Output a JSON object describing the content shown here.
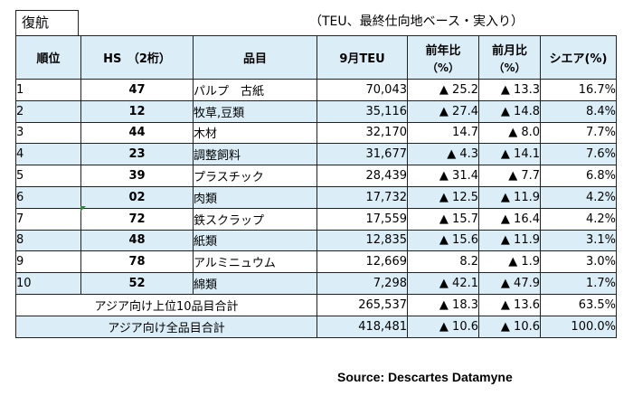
{
  "tag_label": "復航",
  "unit_note": "（TEU、最終仕向地ベース・実入り）",
  "headers": {
    "rank": "順位",
    "hs": "HS　（2桁）",
    "item": "品目",
    "teu": "9月TEU",
    "yoy_top": "前年比",
    "yoy_sub": "（%）",
    "mom_top": "前月比",
    "mom_sub": "（%）",
    "share": "シエア(%)"
  },
  "rows": [
    {
      "rank": "1",
      "hs": "47",
      "item": "パルプ　古紙",
      "teu": "70,043",
      "yoy": "▲ 25.2",
      "mom": "▲ 13.3",
      "share": "16.7%"
    },
    {
      "rank": "2",
      "hs": "12",
      "item": "牧草,豆類",
      "teu": "35,116",
      "yoy": "▲ 27.4",
      "mom": "▲ 14.8",
      "share": "8.4%"
    },
    {
      "rank": "3",
      "hs": "44",
      "item": "木材",
      "teu": "32,170",
      "yoy": "14.7",
      "mom": "▲ 8.0",
      "share": "7.7%"
    },
    {
      "rank": "4",
      "hs": "23",
      "item": "調整飼料",
      "teu": "31,677",
      "yoy": "▲ 4.3",
      "mom": "▲ 14.1",
      "share": "7.6%"
    },
    {
      "rank": "5",
      "hs": "39",
      "item": "プラスチック",
      "teu": "28,439",
      "yoy": "▲ 31.4",
      "mom": "▲ 7.7",
      "share": "6.8%"
    },
    {
      "rank": "6",
      "hs": "02",
      "item": "肉類",
      "teu": "17,732",
      "yoy": "▲ 12.5",
      "mom": "▲ 11.9",
      "share": "4.2%"
    },
    {
      "rank": "7",
      "hs": "72",
      "item": "鉄スクラップ",
      "teu": "17,559",
      "yoy": "▲ 15.7",
      "mom": "▲ 16.4",
      "share": "4.2%"
    },
    {
      "rank": "8",
      "hs": "48",
      "item": "紙類",
      "teu": "12,835",
      "yoy": "▲ 15.6",
      "mom": "▲ 11.9",
      "share": "3.1%"
    },
    {
      "rank": "9",
      "hs": "78",
      "item": "アルミニュウム",
      "teu": "12,669",
      "yoy": "8.2",
      "mom": "▲ 1.9",
      "share": "3.0%"
    },
    {
      "rank": "10",
      "hs": "52",
      "item": "綿類",
      "teu": "7,298",
      "yoy": "▲ 42.1",
      "mom": "▲ 47.9",
      "share": "1.7%"
    }
  ],
  "totals": [
    {
      "label": "アジア向け上位10品目合計",
      "teu": "265,537",
      "yoy": "▲ 18.3",
      "mom": "▲ 13.6",
      "share": "63.5%"
    },
    {
      "label": "アジア向け全品目合計",
      "teu": "418,481",
      "yoy": "▲ 10.6",
      "mom": "▲ 10.6",
      "share": "100.0%"
    }
  ],
  "source": "Source: Descartes Datamyne"
}
